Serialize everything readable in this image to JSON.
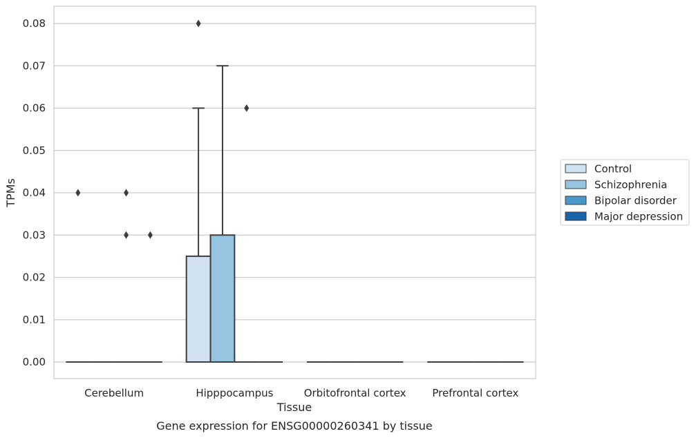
{
  "chart_data": {
    "type": "box",
    "title": "",
    "caption": "Gene expression for ENSG00000260341 by tissue",
    "xlabel": "Tissue",
    "ylabel": "TPMs",
    "ylim": [
      -0.004,
      0.084
    ],
    "yticks": [
      "0.00",
      "0.01",
      "0.02",
      "0.03",
      "0.04",
      "0.05",
      "0.06",
      "0.07",
      "0.08"
    ],
    "categories": [
      "Cerebellum",
      "Hipppocampus",
      "Orbitofrontal cortex",
      "Prefrontal cortex"
    ],
    "grid": true,
    "legend_position": "right",
    "series": [
      {
        "name": "Control",
        "color": "#d0e1f2",
        "boxes": [
          {
            "q1": 0,
            "median": 0,
            "q3": 0,
            "whislo": 0,
            "whishi": 0,
            "fliers": [
              0.04
            ]
          },
          {
            "q1": 0,
            "median": 0,
            "q3": 0.025,
            "whislo": 0,
            "whishi": 0.06,
            "fliers": [
              0.08
            ]
          },
          {
            "q1": 0,
            "median": 0,
            "q3": 0,
            "whislo": 0,
            "whishi": 0,
            "fliers": []
          },
          {
            "q1": 0,
            "median": 0,
            "q3": 0,
            "whislo": 0,
            "whishi": 0,
            "fliers": []
          }
        ]
      },
      {
        "name": "Schizophrenia",
        "color": "#94c4df",
        "boxes": [
          {
            "q1": 0,
            "median": 0,
            "q3": 0,
            "whislo": 0,
            "whishi": 0,
            "fliers": []
          },
          {
            "q1": 0,
            "median": 0,
            "q3": 0.03,
            "whislo": 0,
            "whishi": 0.07,
            "fliers": []
          },
          {
            "q1": 0,
            "median": 0,
            "q3": 0,
            "whislo": 0,
            "whishi": 0,
            "fliers": []
          },
          {
            "q1": 0,
            "median": 0,
            "q3": 0,
            "whislo": 0,
            "whishi": 0,
            "fliers": []
          }
        ]
      },
      {
        "name": "Bipolar disorder",
        "color": "#4a98c9",
        "boxes": [
          {
            "q1": 0,
            "median": 0,
            "q3": 0,
            "whislo": 0,
            "whishi": 0,
            "fliers": [
              0.04,
              0.03
            ]
          },
          {
            "q1": 0,
            "median": 0,
            "q3": 0,
            "whislo": 0,
            "whishi": 0,
            "fliers": [
              0.06
            ]
          },
          {
            "q1": 0,
            "median": 0,
            "q3": 0,
            "whislo": 0,
            "whishi": 0,
            "fliers": []
          },
          {
            "q1": 0,
            "median": 0,
            "q3": 0,
            "whislo": 0,
            "whishi": 0,
            "fliers": []
          }
        ]
      },
      {
        "name": "Major depression",
        "color": "#1764ab",
        "boxes": [
          {
            "q1": 0,
            "median": 0,
            "q3": 0,
            "whislo": 0,
            "whishi": 0,
            "fliers": [
              0.03
            ]
          },
          {
            "q1": 0,
            "median": 0,
            "q3": 0,
            "whislo": 0,
            "whishi": 0,
            "fliers": []
          },
          {
            "q1": 0,
            "median": 0,
            "q3": 0,
            "whislo": 0,
            "whishi": 0,
            "fliers": []
          },
          {
            "q1": 0,
            "median": 0,
            "q3": 0,
            "whislo": 0,
            "whishi": 0,
            "fliers": []
          }
        ]
      }
    ]
  }
}
